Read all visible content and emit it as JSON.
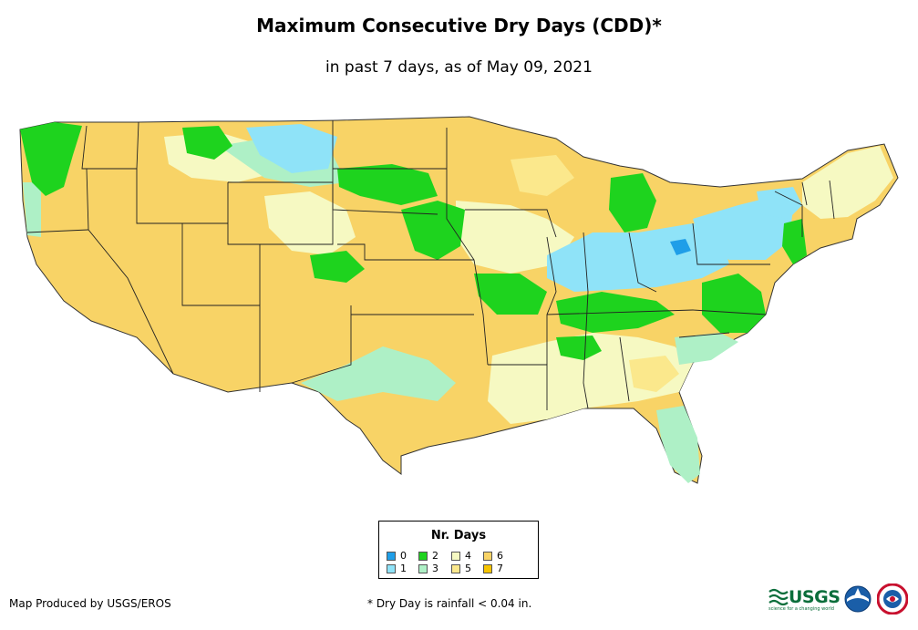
{
  "map": {
    "title": "Maximum Consecutive Dry Days (CDD)*",
    "subtitle": "in past 7 days, as of May 09, 2021",
    "region": "Contiguous United States"
  },
  "legend": {
    "title": "Nr. Days",
    "classes": [
      {
        "value": "0",
        "color": "#1f9ee8"
      },
      {
        "value": "1",
        "color": "#8fe3f8"
      },
      {
        "value": "2",
        "color": "#1ed31e"
      },
      {
        "value": "3",
        "color": "#aef0c6"
      },
      {
        "value": "4",
        "color": "#f6f9c2"
      },
      {
        "value": "5",
        "color": "#fbe88c"
      },
      {
        "value": "6",
        "color": "#f8d366"
      },
      {
        "value": "7",
        "color": "#f6c400"
      }
    ]
  },
  "footer": {
    "credit": "Map Produced by USGS/EROS",
    "footnote": "* Dry Day is rainfall < 0.04 in.",
    "logo_usgs": "USGS",
    "logo_usgs_tagline": "science for a changing world",
    "logo_noaa": "NOAA",
    "logo_nws": "National Weather Service"
  }
}
